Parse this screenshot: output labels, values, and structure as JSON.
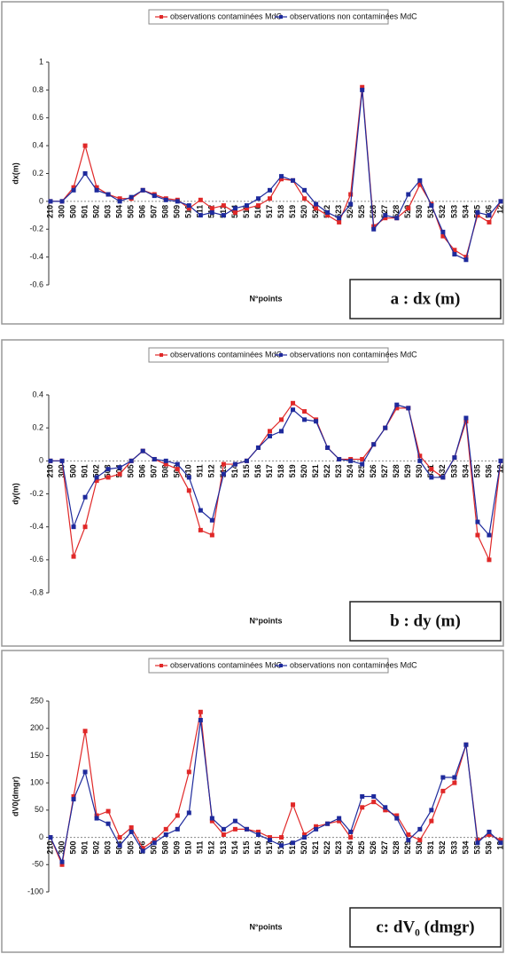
{
  "chart_data": [
    {
      "type": "line",
      "ylabel": "dx(m)",
      "xlabel": "N°points",
      "label": "a : dx (m)",
      "categories": [
        "210",
        "300",
        "500",
        "501",
        "502",
        "503",
        "504",
        "505",
        "506",
        "507",
        "508",
        "509",
        "510",
        "511",
        "512",
        "513",
        "514",
        "515",
        "516",
        "517",
        "518",
        "519",
        "520",
        "521",
        "522",
        "523",
        "524",
        "525",
        "526",
        "527",
        "528",
        "529",
        "530",
        "531",
        "532",
        "533",
        "534",
        "535",
        "536",
        "12"
      ],
      "series": [
        {
          "name": "observations contaminées MdC",
          "color": "#e02828",
          "values": [
            0,
            0,
            0.1,
            0.4,
            0.1,
            0.05,
            0.02,
            0.02,
            0.08,
            0.05,
            0.02,
            0.01,
            -0.05,
            0.01,
            -0.05,
            -0.03,
            -0.08,
            -0.05,
            -0.03,
            0.02,
            0.16,
            0.15,
            0.02,
            -0.05,
            -0.1,
            -0.15,
            0.05,
            0.82,
            -0.18,
            -0.12,
            -0.12,
            -0.05,
            0.12,
            -0.02,
            -0.25,
            -0.35,
            -0.4,
            -0.1,
            -0.15,
            0
          ]
        },
        {
          "name": "observations non contaminées MdC",
          "color": "#1e2a9c",
          "values": [
            0,
            0,
            0.08,
            0.2,
            0.08,
            0.05,
            0,
            0.03,
            0.08,
            0.04,
            0.01,
            0,
            -0.03,
            -0.1,
            -0.08,
            -0.1,
            -0.05,
            -0.03,
            0.02,
            0.08,
            0.18,
            0.15,
            0.08,
            -0.02,
            -0.08,
            -0.12,
            -0.02,
            0.8,
            -0.2,
            -0.1,
            -0.12,
            0.05,
            0.15,
            -0.03,
            -0.22,
            -0.38,
            -0.42,
            -0.08,
            -0.1,
            0
          ]
        }
      ],
      "ylim": [
        -0.6,
        1
      ],
      "yticks": [
        -0.6,
        -0.4,
        -0.2,
        0,
        0.2,
        0.4,
        0.6,
        0.8,
        1
      ]
    },
    {
      "type": "line",
      "ylabel": "dy(m)",
      "xlabel": "N°points",
      "label": "b : dy (m)",
      "categories": [
        "210",
        "300",
        "500",
        "501",
        "502",
        "503",
        "504",
        "505",
        "506",
        "507",
        "508",
        "509",
        "510",
        "511",
        "512",
        "513",
        "514",
        "515",
        "516",
        "517",
        "518",
        "519",
        "520",
        "521",
        "522",
        "523",
        "524",
        "525",
        "526",
        "527",
        "528",
        "529",
        "530",
        "531",
        "532",
        "533",
        "534",
        "535",
        "536",
        "12"
      ],
      "series": [
        {
          "name": "observations contaminées MdC",
          "color": "#e02828",
          "values": [
            0,
            0,
            -0.58,
            -0.4,
            -0.12,
            -0.1,
            -0.08,
            0,
            0.06,
            0.01,
            -0.02,
            -0.05,
            -0.18,
            -0.42,
            -0.45,
            -0.02,
            -0.02,
            0,
            0.08,
            0.18,
            0.25,
            0.35,
            0.3,
            0.25,
            0.08,
            0.01,
            0.01,
            0.01,
            0.1,
            0.2,
            0.32,
            0.32,
            0.03,
            -0.05,
            -0.1,
            0.02,
            0.24,
            -0.45,
            -0.6,
            0
          ]
        },
        {
          "name": "observations non contaminées MdC",
          "color": "#1e2a9c",
          "values": [
            0,
            0,
            -0.4,
            -0.22,
            -0.1,
            -0.05,
            -0.04,
            0,
            0.06,
            0.01,
            0,
            -0.02,
            -0.1,
            -0.3,
            -0.36,
            -0.08,
            -0.02,
            0,
            0.08,
            0.15,
            0.18,
            0.31,
            0.25,
            0.24,
            0.08,
            0.01,
            0,
            -0.02,
            0.1,
            0.2,
            0.34,
            0.32,
            0,
            -0.1,
            -0.1,
            0.02,
            0.26,
            -0.37,
            -0.45,
            0
          ]
        }
      ],
      "ylim": [
        -0.8,
        0.4
      ],
      "yticks": [
        -0.8,
        -0.6,
        -0.4,
        -0.2,
        0,
        0.2,
        0.4
      ]
    },
    {
      "type": "line",
      "ylabel": "dV0(dmgr)",
      "xlabel": "N°points",
      "label": "c: dV₀ (dmgr)",
      "categories": [
        "210",
        "300",
        "500",
        "501",
        "502",
        "503",
        "504",
        "505",
        "506",
        "507",
        "508",
        "509",
        "510",
        "511",
        "512",
        "513",
        "514",
        "515",
        "516",
        "517",
        "518",
        "519",
        "520",
        "521",
        "522",
        "523",
        "524",
        "525",
        "526",
        "527",
        "528",
        "529",
        "530",
        "531",
        "532",
        "533",
        "534",
        "535",
        "536",
        "12"
      ],
      "series": [
        {
          "name": "observations contaminées MdC",
          "color": "#e02828",
          "values": [
            0,
            -50,
            75,
            195,
            40,
            48,
            0,
            18,
            -20,
            -5,
            15,
            40,
            120,
            230,
            30,
            5,
            15,
            15,
            10,
            0,
            0,
            60,
            5,
            20,
            25,
            30,
            0,
            55,
            65,
            50,
            40,
            5,
            -5,
            30,
            85,
            100,
            170,
            -5,
            5,
            -5
          ]
        },
        {
          "name": "observations non contaminées MdC",
          "color": "#1e2a9c",
          "values": [
            0,
            -45,
            70,
            120,
            35,
            25,
            -15,
            10,
            -25,
            -10,
            5,
            15,
            45,
            215,
            35,
            15,
            30,
            15,
            5,
            -5,
            -15,
            -10,
            0,
            15,
            25,
            35,
            10,
            75,
            75,
            55,
            35,
            -5,
            15,
            50,
            110,
            110,
            170,
            -10,
            10,
            -10
          ]
        }
      ],
      "ylim": [
        -100,
        250
      ],
      "yticks": [
        -100,
        -50,
        0,
        50,
        100,
        150,
        200,
        250
      ]
    }
  ]
}
